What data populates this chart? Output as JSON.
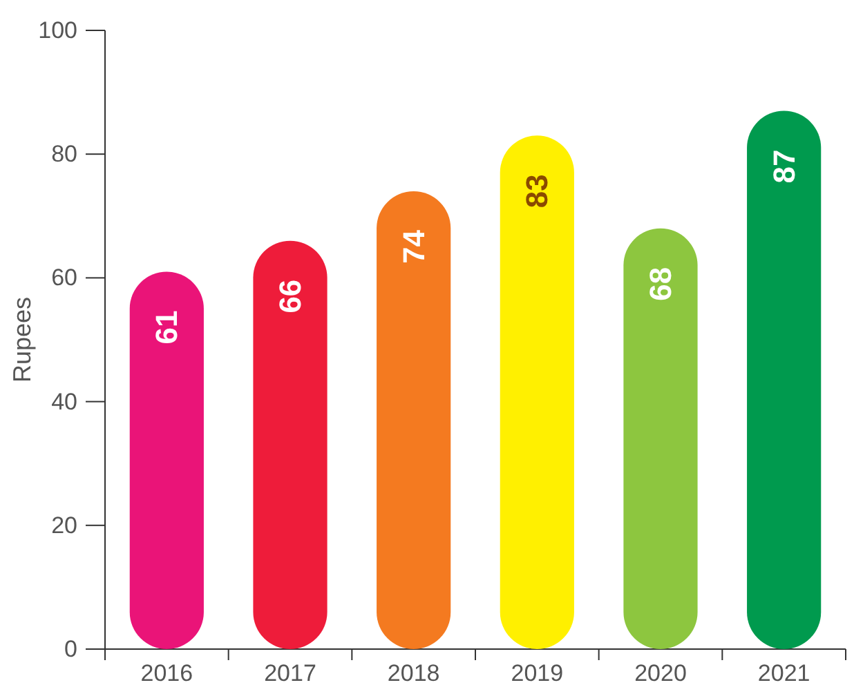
{
  "chart_data": {
    "type": "bar",
    "ylabel": "Rupees",
    "categories": [
      "2016",
      "2017",
      "2018",
      "2019",
      "2020",
      "2021"
    ],
    "values": [
      61,
      66,
      74,
      83,
      68,
      87
    ],
    "colors": [
      "#ea1478",
      "#ee1c3a",
      "#f47a20",
      "#fff000",
      "#8dc63f",
      "#009a4e"
    ],
    "ylim": [
      0,
      100
    ],
    "yticks": [
      0,
      20,
      40,
      60,
      80,
      100
    ],
    "data_labels": true
  }
}
